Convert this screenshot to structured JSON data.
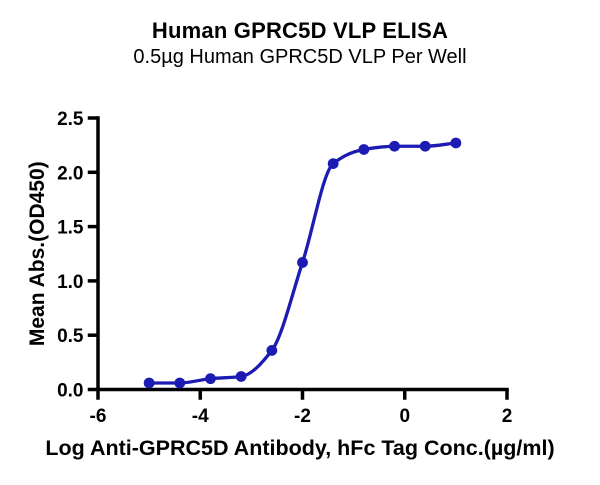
{
  "chart_data": {
    "type": "scatter",
    "curve": "sigmoid-fit-through-points",
    "title": "Human GPRC5D VLP ELISA",
    "subtitle": "0.5µg Human GPRC5D VLP Per Well",
    "xlabel": "Log Anti-GPRC5D Antibody, hFc Tag Conc.(µg/ml)",
    "ylabel": "Mean Abs.(OD450)",
    "xlim": [
      -6,
      2
    ],
    "ylim": [
      0.0,
      2.5
    ],
    "x_ticks": [
      -6,
      -4,
      -2,
      0,
      2
    ],
    "y_ticks": [
      0.0,
      0.5,
      1.0,
      1.5,
      2.0,
      2.5
    ],
    "grid": false,
    "legend": "none",
    "series": [
      {
        "marker": "circle",
        "x": [
          -5.0,
          -4.4,
          -3.8,
          -3.2,
          -2.6,
          -2.0,
          -1.4,
          -0.8,
          -0.2,
          0.4,
          1.0
        ],
        "y": [
          0.06,
          0.06,
          0.1,
          0.12,
          0.36,
          1.17,
          2.08,
          2.21,
          2.24,
          2.24,
          2.27
        ]
      }
    ]
  },
  "colors": {
    "curve": "#1c1cb4",
    "axis": "#000000",
    "text": "#000000",
    "background": "#ffffff"
  }
}
